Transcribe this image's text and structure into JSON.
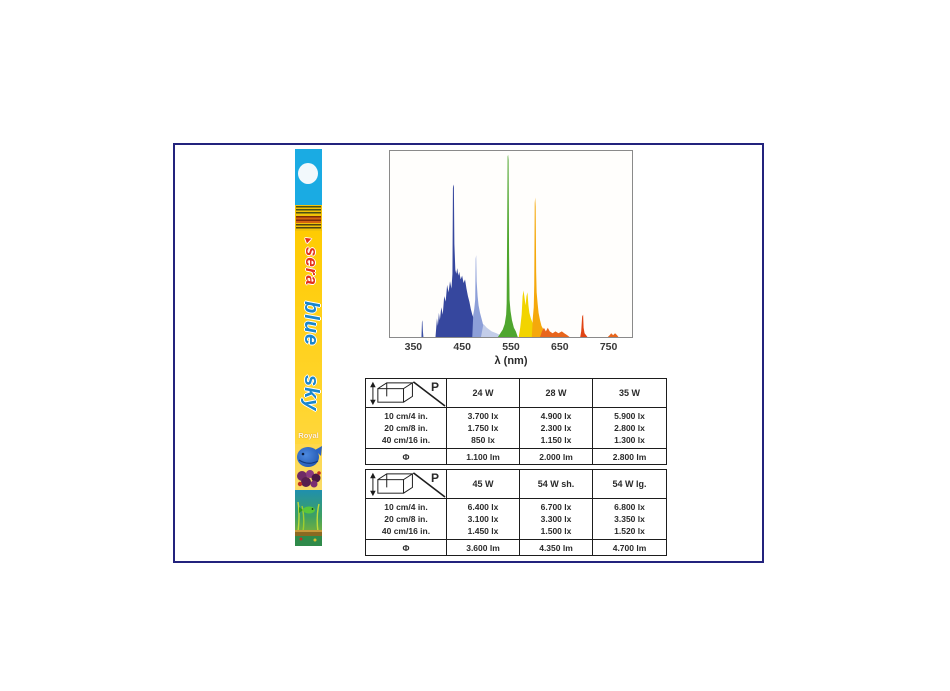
{
  "frame": {
    "border_color": "#23237d"
  },
  "package": {
    "brand": "sera",
    "line1": "blue",
    "line2": "sky",
    "variant": "Royal",
    "colors": {
      "cap_cyan": "#1aabe3",
      "body_yellow": "#ffcb02",
      "brand_red": "#e5301a",
      "product_blue": "#1a86cc"
    }
  },
  "chart_data": [
    {
      "type": "area",
      "xlabel": "λ (nm)",
      "xlim": [
        300,
        800
      ],
      "ylim": [
        0,
        100
      ],
      "xticks": [
        350,
        450,
        550,
        650,
        750
      ],
      "grid": false,
      "legend": "none",
      "segments": [
        {
          "name": "uv-spike",
          "color": "#3c50a5",
          "points": [
            [
              365,
              0
            ],
            [
              366,
              8
            ],
            [
              367,
              9
            ],
            [
              368,
              3
            ],
            [
              369,
              0
            ]
          ]
        },
        {
          "name": "blue-band",
          "color": "#36479e",
          "points": [
            [
              394,
              0
            ],
            [
              397,
              10
            ],
            [
              399,
              6
            ],
            [
              401,
              13
            ],
            [
              403,
              9
            ],
            [
              406,
              16
            ],
            [
              409,
              12
            ],
            [
              412,
              22
            ],
            [
              415,
              19
            ],
            [
              418,
              28
            ],
            [
              421,
              24
            ],
            [
              424,
              30
            ],
            [
              427,
              26
            ],
            [
              429,
              34
            ],
            [
              430,
              80
            ],
            [
              431,
              82
            ],
            [
              432,
              81
            ],
            [
              433,
              50
            ],
            [
              435,
              36
            ],
            [
              437,
              34
            ],
            [
              439,
              37
            ],
            [
              441,
              33
            ],
            [
              443,
              35
            ],
            [
              446,
              31
            ],
            [
              449,
              33
            ],
            [
              452,
              29
            ],
            [
              455,
              31
            ],
            [
              458,
              26
            ],
            [
              461,
              22
            ],
            [
              464,
              19
            ],
            [
              467,
              15
            ],
            [
              470,
              12
            ],
            [
              473,
              10
            ],
            [
              476,
              9
            ],
            [
              478,
              0
            ]
          ]
        },
        {
          "name": "periwinkle-peak",
          "color": "#8d9fd8",
          "points": [
            [
              470,
              0
            ],
            [
              472,
              12
            ],
            [
              474,
              15
            ],
            [
              476,
              20
            ],
            [
              477,
              42
            ],
            [
              478,
              44
            ],
            [
              479,
              30
            ],
            [
              481,
              22
            ],
            [
              483,
              17
            ],
            [
              486,
              13
            ],
            [
              489,
              10
            ],
            [
              492,
              7
            ],
            [
              496,
              5
            ],
            [
              500,
              4
            ],
            [
              505,
              3
            ],
            [
              510,
              2
            ],
            [
              515,
              0
            ]
          ]
        },
        {
          "name": "pale-blue-fade",
          "color": "#c3cde9",
          "points": [
            [
              488,
              0
            ],
            [
              493,
              7
            ],
            [
              500,
              5
            ],
            [
              510,
              3
            ],
            [
              520,
              2
            ],
            [
              528,
              1
            ],
            [
              532,
              0
            ]
          ]
        },
        {
          "name": "green-spike",
          "color": "#4fa62e",
          "points": [
            [
              523,
              0
            ],
            [
              528,
              2
            ],
            [
              533,
              4
            ],
            [
              537,
              7
            ],
            [
              540,
              12
            ],
            [
              541,
              18
            ],
            [
              542,
              55
            ],
            [
              543,
              97
            ],
            [
              544,
              98
            ],
            [
              545,
              95
            ],
            [
              546,
              45
            ],
            [
              547,
              20
            ],
            [
              549,
              14
            ],
            [
              552,
              9
            ],
            [
              556,
              5
            ],
            [
              560,
              3
            ],
            [
              564,
              0
            ]
          ]
        },
        {
          "name": "yellow-humps",
          "color": "#f2d400",
          "points": [
            [
              566,
              0
            ],
            [
              569,
              5
            ],
            [
              572,
              12
            ],
            [
              574,
              22
            ],
            [
              576,
              25
            ],
            [
              578,
              21
            ],
            [
              580,
              17
            ],
            [
              582,
              22
            ],
            [
              584,
              24
            ],
            [
              586,
              17
            ],
            [
              588,
              13
            ],
            [
              591,
              10
            ],
            [
              594,
              8
            ],
            [
              596,
              6
            ],
            [
              599,
              0
            ]
          ]
        },
        {
          "name": "orange-peak",
          "color": "#f5a80b",
          "points": [
            [
              593,
              0
            ],
            [
              595,
              10
            ],
            [
              597,
              16
            ],
            [
              598,
              28
            ],
            [
              599,
              72
            ],
            [
              600,
              75
            ],
            [
              601,
              70
            ],
            [
              602,
              35
            ],
            [
              603,
              24
            ],
            [
              605,
              18
            ],
            [
              607,
              13
            ],
            [
              610,
              9
            ],
            [
              613,
              6
            ],
            [
              617,
              4
            ],
            [
              621,
              3
            ],
            [
              625,
              2
            ],
            [
              629,
              1
            ],
            [
              633,
              0
            ]
          ]
        },
        {
          "name": "orange-tail",
          "color": "#e8651c",
          "points": [
            [
              610,
              0
            ],
            [
              614,
              3
            ],
            [
              618,
              5
            ],
            [
              622,
              3
            ],
            [
              626,
              5
            ],
            [
              630,
              3
            ],
            [
              636,
              2
            ],
            [
              642,
              3
            ],
            [
              648,
              2
            ],
            [
              655,
              3
            ],
            [
              660,
              2
            ],
            [
              666,
              1
            ],
            [
              671,
              0
            ]
          ]
        },
        {
          "name": "red-spike",
          "color": "#e04414",
          "points": [
            [
              693,
              0
            ],
            [
              695,
              3
            ],
            [
              697,
              11
            ],
            [
              699,
              12
            ],
            [
              700,
              5
            ],
            [
              702,
              2
            ],
            [
              705,
              1
            ],
            [
              708,
              0
            ]
          ]
        },
        {
          "name": "far-red-specks",
          "color": "#e8651c",
          "points": [
            [
              750,
              0
            ],
            [
              754,
              1
            ],
            [
              757,
              2
            ],
            [
              761,
              1
            ],
            [
              765,
              2
            ],
            [
              769,
              1
            ],
            [
              772,
              0
            ]
          ]
        }
      ]
    },
    {
      "type": "table",
      "corner_label": "P",
      "columns": [
        "24 W",
        "28 W",
        "35 W"
      ],
      "distance_rows": [
        "10 cm/4 in.",
        "20 cm/8 in.",
        "40 cm/16 in."
      ],
      "lux_values": [
        [
          "3.700 lx",
          "4.900 lx",
          "5.900 lx"
        ],
        [
          "1.750 lx",
          "2.300 lx",
          "2.800 lx"
        ],
        [
          "850 lx",
          "1.150 lx",
          "1.300 lx"
        ]
      ],
      "phi_label": "Φ",
      "lumen_values": [
        "1.100 lm",
        "2.000 lm",
        "2.800 lm"
      ]
    },
    {
      "type": "table",
      "corner_label": "P",
      "columns": [
        "45 W",
        "54 W sh.",
        "54 W lg."
      ],
      "distance_rows": [
        "10 cm/4 in.",
        "20 cm/8 in.",
        "40 cm/16 in."
      ],
      "lux_values": [
        [
          "6.400 lx",
          "6.700 lx",
          "6.800 lx"
        ],
        [
          "3.100 lx",
          "3.300 lx",
          "3.350 lx"
        ],
        [
          "1.450 lx",
          "1.500 lx",
          "1.520 lx"
        ]
      ],
      "phi_label": "Φ",
      "lumen_values": [
        "3.600 lm",
        "4.350 lm",
        "4.700 lm"
      ]
    }
  ]
}
